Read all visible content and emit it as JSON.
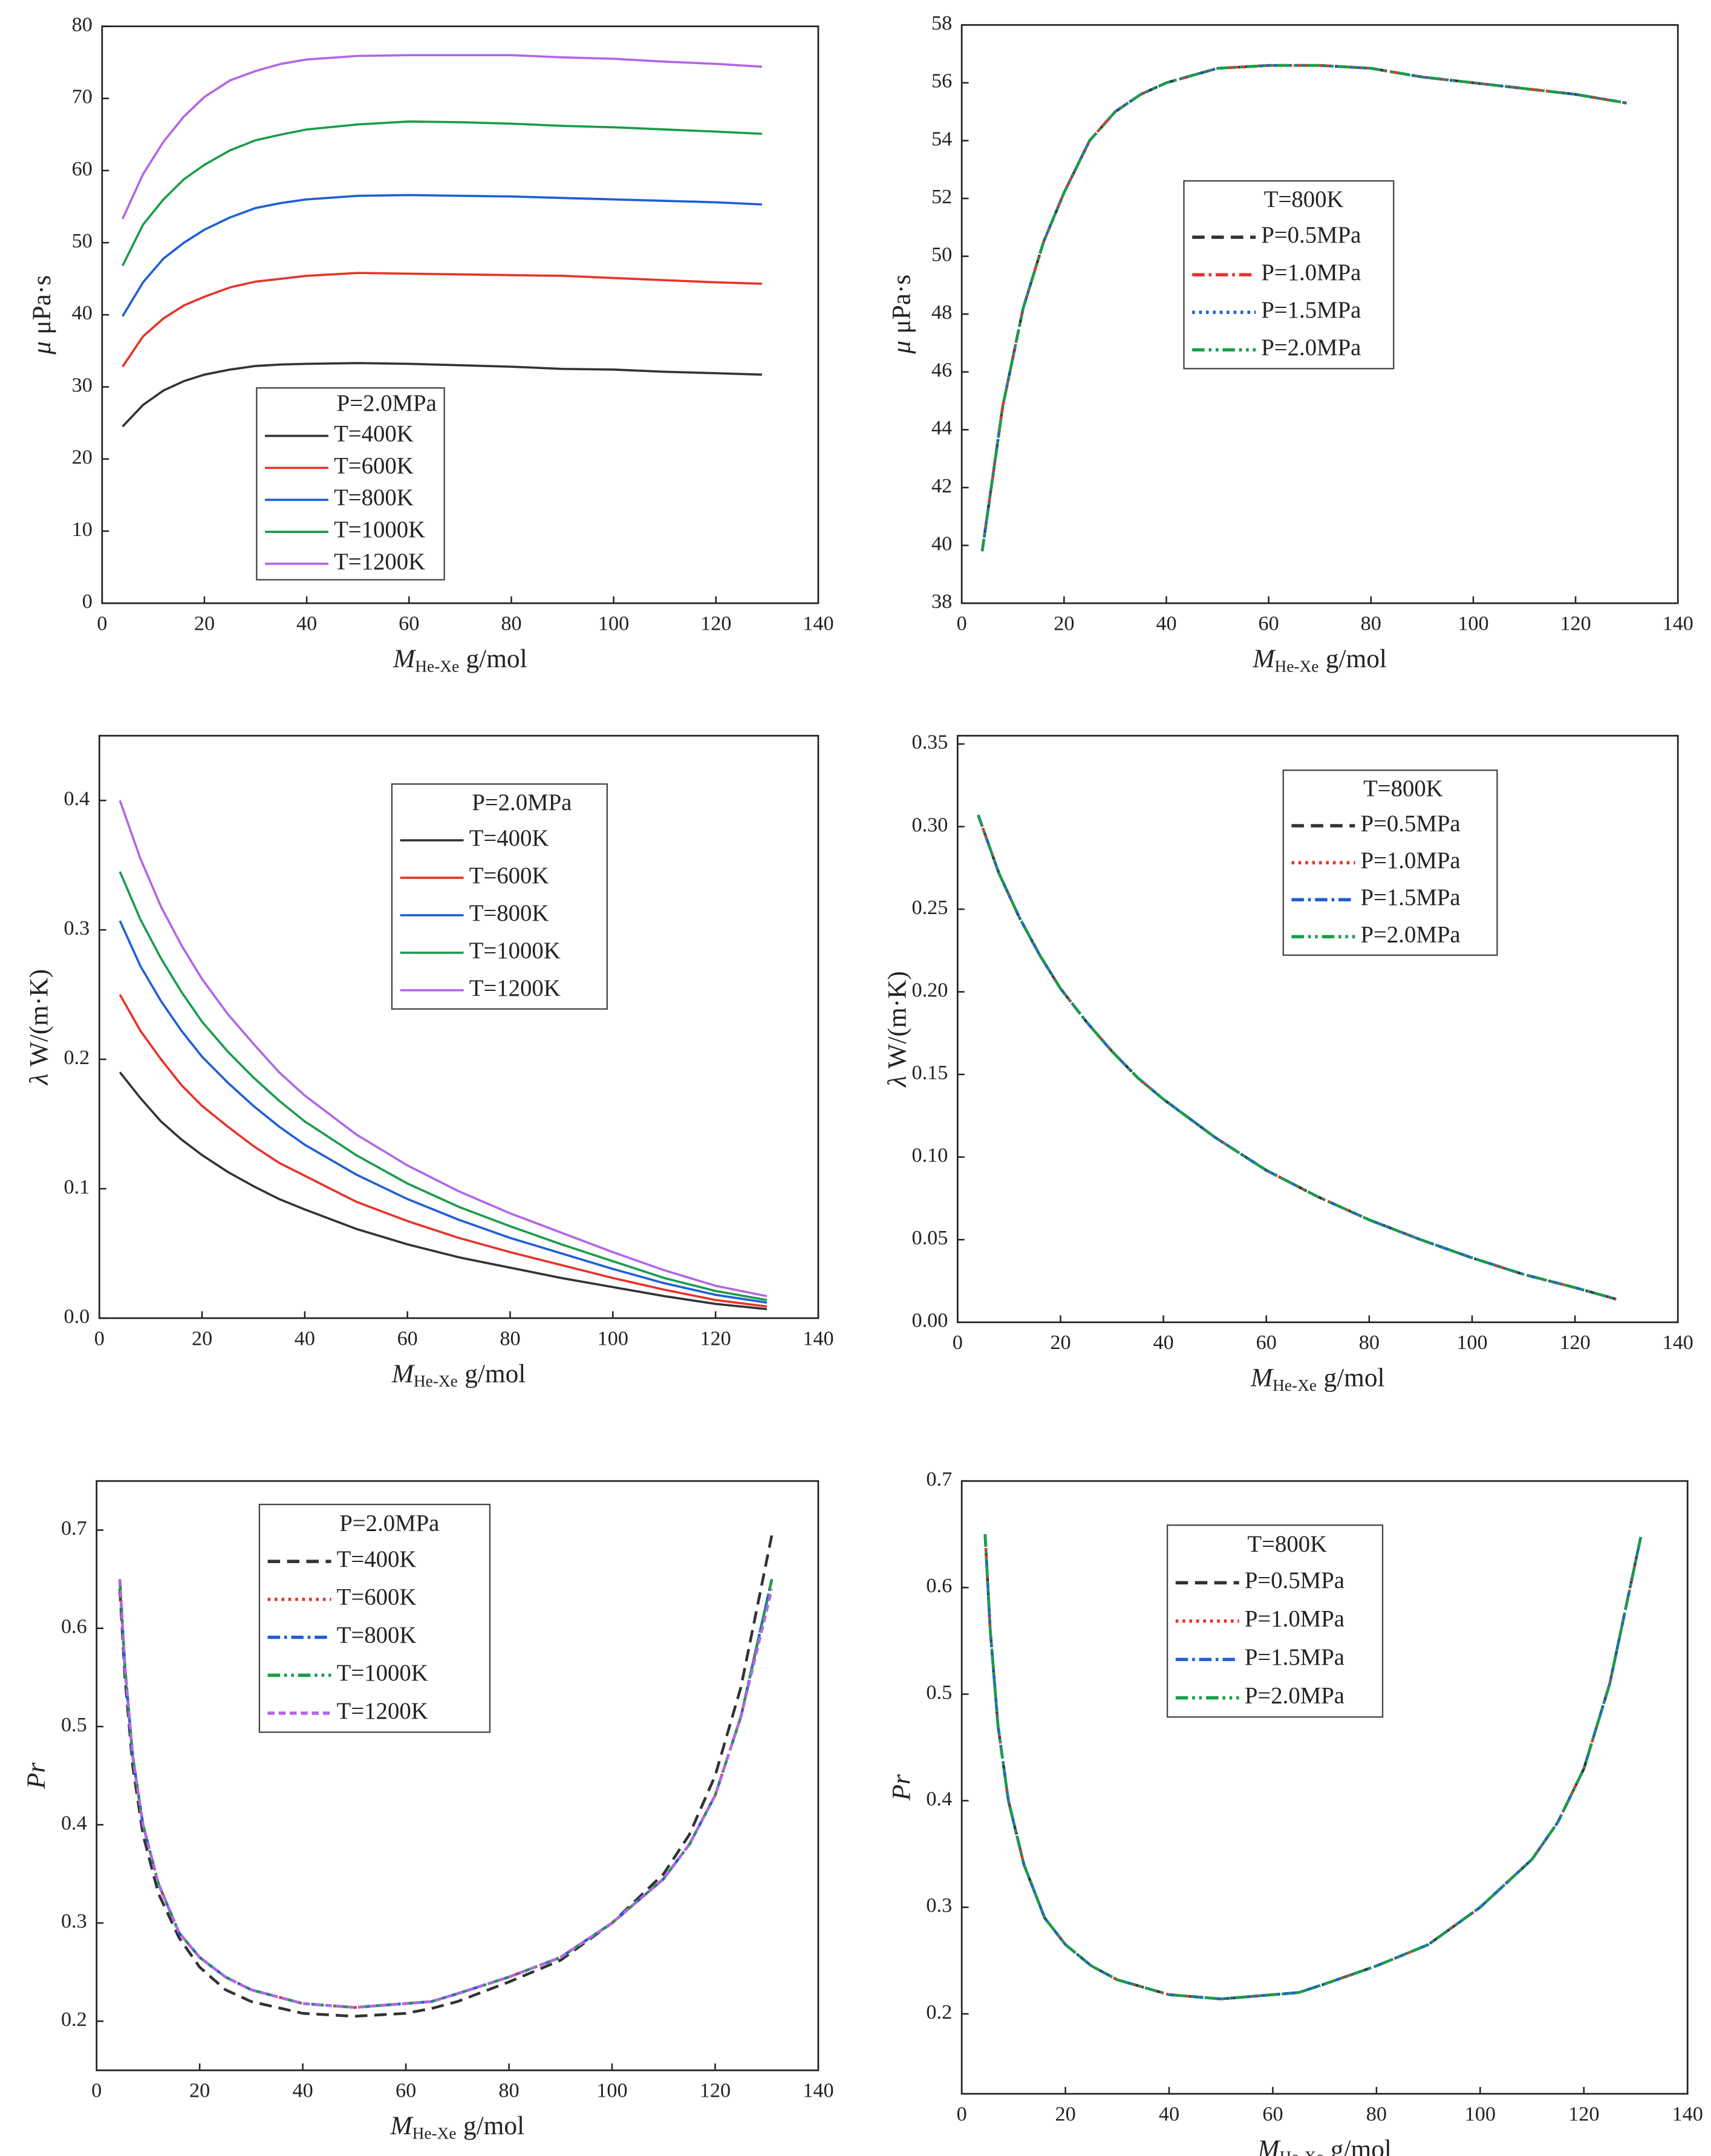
{
  "chart_data": [
    {
      "type": "line",
      "x": [
        4,
        8,
        12,
        16,
        20,
        25,
        30,
        35,
        40,
        50,
        60,
        70,
        80,
        90,
        100,
        110,
        120,
        129
      ],
      "xlim": [
        0,
        140
      ],
      "xticks": [
        0,
        20,
        40,
        60,
        80,
        100,
        120,
        140
      ],
      "ylim": [
        0,
        80
      ],
      "yticks": [
        0,
        10,
        20,
        30,
        40,
        50,
        60,
        70,
        80
      ],
      "x_label": {
        "symbol": "M",
        "sub": "He-Xe",
        "unit": "g/mol"
      },
      "y_label": {
        "symbol": "μ",
        "unit": "μPa·s"
      },
      "legend_title": "P=2.0MPa",
      "series": [
        {
          "name": "T=400K",
          "color": "#333333",
          "dash": "solid",
          "values": [
            24.5,
            27.5,
            29.5,
            30.8,
            31.7,
            32.4,
            32.9,
            33.1,
            33.2,
            33.3,
            33.2,
            33.0,
            32.8,
            32.5,
            32.4,
            32.1,
            31.9,
            31.7
          ]
        },
        {
          "name": "T=600K",
          "color": "#e8332a",
          "dash": "solid",
          "values": [
            32.8,
            37,
            39.5,
            41.3,
            42.5,
            43.8,
            44.6,
            45.0,
            45.4,
            45.8,
            45.7,
            45.6,
            45.5,
            45.4,
            45.1,
            44.8,
            44.5,
            44.3
          ]
        },
        {
          "name": "T=800K",
          "color": "#1f5fd6",
          "dash": "solid",
          "values": [
            39.8,
            44.5,
            47.8,
            50.0,
            51.8,
            53.5,
            54.8,
            55.5,
            56.0,
            56.5,
            56.6,
            56.5,
            56.4,
            56.2,
            56.0,
            55.8,
            55.6,
            55.3
          ]
        },
        {
          "name": "T=1000K",
          "color": "#1a9c4a",
          "dash": "solid",
          "values": [
            46.8,
            52.5,
            56.0,
            58.8,
            60.8,
            62.8,
            64.2,
            65.0,
            65.7,
            66.4,
            66.8,
            66.7,
            66.5,
            66.2,
            66.0,
            65.7,
            65.4,
            65.1
          ]
        },
        {
          "name": "T=1200K",
          "color": "#b266e6",
          "dash": "solid",
          "values": [
            53.3,
            59.5,
            64,
            67.5,
            70.2,
            72.5,
            73.8,
            74.8,
            75.4,
            75.9,
            76.0,
            76.0,
            76.0,
            75.7,
            75.5,
            75.1,
            74.8,
            74.4
          ]
        }
      ]
    },
    {
      "type": "line",
      "x": [
        4,
        8,
        12,
        16,
        20,
        25,
        30,
        35,
        40,
        50,
        60,
        70,
        80,
        90,
        100,
        110,
        120,
        130
      ],
      "xlim": [
        0,
        140
      ],
      "xticks": [
        0,
        20,
        40,
        60,
        80,
        100,
        120,
        140
      ],
      "ylim": [
        38,
        58
      ],
      "yticks": [
        38,
        40,
        42,
        44,
        46,
        48,
        50,
        52,
        54,
        56,
        58
      ],
      "x_label": {
        "symbol": "M",
        "sub": "He-Xe",
        "unit": "g/mol"
      },
      "y_label": {
        "symbol": "μ",
        "unit": "μPa·s"
      },
      "legend_title": "T=800K",
      "series": [
        {
          "name": "P=0.5MPa",
          "color": "#333333",
          "dash": "dash",
          "values": [
            39.8,
            44.8,
            48.2,
            50.5,
            52.2,
            54,
            55,
            55.6,
            56.0,
            56.5,
            56.6,
            56.6,
            56.5,
            56.2,
            56.0,
            55.8,
            55.6,
            55.3
          ]
        },
        {
          "name": "P=1.0MPa",
          "color": "#e8332a",
          "dash": "dashdot",
          "values": [
            39.8,
            44.8,
            48.2,
            50.5,
            52.2,
            54,
            55,
            55.6,
            56.0,
            56.5,
            56.6,
            56.6,
            56.5,
            56.2,
            56.0,
            55.8,
            55.6,
            55.3
          ]
        },
        {
          "name": "P=1.5MPa",
          "color": "#1f5fd6",
          "dash": "dot",
          "values": [
            39.8,
            44.8,
            48.2,
            50.5,
            52.2,
            54,
            55,
            55.6,
            56.0,
            56.5,
            56.6,
            56.6,
            56.5,
            56.2,
            56.0,
            55.8,
            55.6,
            55.3
          ]
        },
        {
          "name": "P=2.0MPa",
          "color": "#1a9c4a",
          "dash": "dashdotdot",
          "values": [
            39.8,
            44.8,
            48.2,
            50.5,
            52.2,
            54,
            55,
            55.6,
            56.0,
            56.5,
            56.6,
            56.6,
            56.5,
            56.2,
            56.0,
            55.8,
            55.6,
            55.3
          ]
        }
      ]
    },
    {
      "type": "line",
      "x": [
        4,
        8,
        12,
        16,
        20,
        25,
        30,
        35,
        40,
        50,
        60,
        70,
        80,
        90,
        100,
        110,
        120,
        130
      ],
      "xlim": [
        0,
        140
      ],
      "xticks": [
        0,
        20,
        40,
        60,
        80,
        100,
        120,
        140
      ],
      "ylim": [
        0,
        0.45
      ],
      "yticks": [
        {
          "value": 0,
          "label": "0.0"
        },
        0.1,
        0.2,
        0.3,
        0.4
      ],
      "x_label": {
        "symbol": "M",
        "sub": "He-Xe",
        "unit": "g/mol"
      },
      "y_label": {
        "symbol": "λ",
        "unit": "W/(m·K)"
      },
      "legend_title": "P=2.0MPa",
      "series": [
        {
          "name": "T=400K",
          "color": "#333333",
          "dash": "solid",
          "values": [
            0.19,
            0.17,
            0.152,
            0.138,
            0.126,
            0.113,
            0.102,
            0.092,
            0.084,
            0.069,
            0.057,
            0.047,
            0.039,
            0.031,
            0.024,
            0.017,
            0.011,
            0.007
          ]
        },
        {
          "name": "T=600K",
          "color": "#e8332a",
          "dash": "solid",
          "values": [
            0.25,
            0.222,
            0.2,
            0.18,
            0.164,
            0.148,
            0.133,
            0.12,
            0.11,
            0.09,
            0.075,
            0.062,
            0.051,
            0.041,
            0.031,
            0.022,
            0.014,
            0.009
          ]
        },
        {
          "name": "T=800K",
          "color": "#1f5fd6",
          "dash": "solid",
          "values": [
            0.307,
            0.272,
            0.245,
            0.222,
            0.202,
            0.182,
            0.164,
            0.148,
            0.134,
            0.111,
            0.092,
            0.076,
            0.062,
            0.05,
            0.038,
            0.027,
            0.018,
            0.012
          ]
        },
        {
          "name": "T=1000K",
          "color": "#1a9c4a",
          "dash": "solid",
          "values": [
            0.345,
            0.308,
            0.278,
            0.252,
            0.229,
            0.206,
            0.186,
            0.168,
            0.152,
            0.126,
            0.104,
            0.086,
            0.071,
            0.057,
            0.044,
            0.031,
            0.021,
            0.014
          ]
        },
        {
          "name": "T=1200K",
          "color": "#b266e6",
          "dash": "solid",
          "values": [
            0.4,
            0.355,
            0.318,
            0.288,
            0.262,
            0.235,
            0.212,
            0.19,
            0.172,
            0.142,
            0.118,
            0.098,
            0.081,
            0.066,
            0.051,
            0.037,
            0.025,
            0.017
          ]
        }
      ]
    },
    {
      "type": "line",
      "x": [
        4,
        8,
        12,
        16,
        20,
        25,
        30,
        35,
        40,
        50,
        60,
        70,
        80,
        90,
        100,
        110,
        120,
        128
      ],
      "xlim": [
        0,
        140
      ],
      "xticks": [
        0,
        20,
        40,
        60,
        80,
        100,
        120,
        140
      ],
      "ylim": [
        0,
        0.355
      ],
      "yticks": [
        {
          "value": 0,
          "label": "0.00"
        },
        0.05,
        {
          "value": 0.1,
          "label": "0.10"
        },
        0.15,
        {
          "value": 0.2,
          "label": "0.20"
        },
        0.25,
        {
          "value": 0.3,
          "label": "0.30"
        },
        0.35
      ],
      "x_label": {
        "symbol": "M",
        "sub": "He-Xe",
        "unit": "g/mol"
      },
      "y_label": {
        "symbol": "λ",
        "unit": "W/(m·K)"
      },
      "legend_title": "T=800K",
      "series": [
        {
          "name": "P=0.5MPa",
          "color": "#333333",
          "dash": "dash",
          "values": [
            0.307,
            0.272,
            0.245,
            0.222,
            0.202,
            0.182,
            0.164,
            0.148,
            0.135,
            0.112,
            0.092,
            0.076,
            0.062,
            0.05,
            0.039,
            0.029,
            0.021,
            0.014
          ]
        },
        {
          "name": "P=1.0MPa",
          "color": "#e8332a",
          "dash": "dot",
          "values": [
            0.307,
            0.272,
            0.245,
            0.222,
            0.202,
            0.182,
            0.164,
            0.148,
            0.135,
            0.112,
            0.092,
            0.076,
            0.062,
            0.05,
            0.039,
            0.029,
            0.021,
            0.014
          ]
        },
        {
          "name": "P=1.5MPa",
          "color": "#1f5fd6",
          "dash": "dashdot",
          "values": [
            0.307,
            0.272,
            0.245,
            0.222,
            0.202,
            0.182,
            0.164,
            0.148,
            0.135,
            0.112,
            0.092,
            0.076,
            0.062,
            0.05,
            0.039,
            0.029,
            0.021,
            0.014
          ]
        },
        {
          "name": "P=2.0MPa",
          "color": "#1a9c4a",
          "dash": "dashdotdot",
          "values": [
            0.307,
            0.272,
            0.245,
            0.222,
            0.202,
            0.182,
            0.164,
            0.148,
            0.135,
            0.112,
            0.092,
            0.076,
            0.062,
            0.05,
            0.039,
            0.029,
            0.021,
            0.014
          ]
        }
      ]
    },
    {
      "type": "line",
      "x": [
        4.5,
        5.5,
        7,
        9,
        12,
        16,
        20,
        25,
        30,
        40,
        50,
        60,
        65,
        70,
        80,
        90,
        100,
        110,
        115,
        120,
        125,
        131
      ],
      "xlim": [
        0,
        140
      ],
      "xticks": [
        0,
        20,
        40,
        60,
        80,
        100,
        120,
        140
      ],
      "ylim": [
        0.15,
        0.75
      ],
      "yticks": [
        0.2,
        0.3,
        0.4,
        0.5,
        0.6,
        0.7
      ],
      "x_label": {
        "symbol": "M",
        "sub": "He-Xe",
        "unit": "g/mol"
      },
      "y_label": {
        "symbol": "Pr"
      },
      "legend_title": "P=2.0MPa",
      "series": [
        {
          "name": "T=400K",
          "color": "#333333",
          "dash": "dash",
          "values": [
            0.64,
            0.55,
            0.46,
            0.39,
            0.33,
            0.285,
            0.255,
            0.232,
            0.22,
            0.208,
            0.205,
            0.208,
            0.213,
            0.22,
            0.24,
            0.262,
            0.3,
            0.35,
            0.39,
            0.45,
            0.54,
            0.695
          ]
        },
        {
          "name": "T=600K",
          "color": "#e8332a",
          "dash": "dot",
          "values": [
            0.65,
            0.56,
            0.47,
            0.4,
            0.34,
            0.29,
            0.265,
            0.245,
            0.232,
            0.218,
            0.214,
            0.218,
            0.22,
            0.228,
            0.245,
            0.265,
            0.3,
            0.345,
            0.38,
            0.43,
            0.51,
            0.65
          ]
        },
        {
          "name": "T=800K",
          "color": "#1f5fd6",
          "dash": "dashdot",
          "values": [
            0.65,
            0.56,
            0.47,
            0.4,
            0.34,
            0.29,
            0.265,
            0.245,
            0.232,
            0.218,
            0.214,
            0.218,
            0.22,
            0.228,
            0.245,
            0.265,
            0.3,
            0.345,
            0.38,
            0.43,
            0.51,
            0.65
          ]
        },
        {
          "name": "T=1000K",
          "color": "#1a9c4a",
          "dash": "dashdotdot",
          "values": [
            0.65,
            0.56,
            0.47,
            0.4,
            0.34,
            0.29,
            0.265,
            0.245,
            0.232,
            0.218,
            0.214,
            0.218,
            0.22,
            0.228,
            0.245,
            0.265,
            0.3,
            0.345,
            0.38,
            0.43,
            0.51,
            0.65
          ]
        },
        {
          "name": "T=1200K",
          "color": "#b266e6",
          "dash": "shortdash",
          "values": [
            0.65,
            0.56,
            0.47,
            0.4,
            0.34,
            0.29,
            0.265,
            0.245,
            0.232,
            0.218,
            0.214,
            0.218,
            0.22,
            0.228,
            0.245,
            0.265,
            0.3,
            0.345,
            0.38,
            0.43,
            0.51,
            0.64
          ]
        }
      ]
    },
    {
      "type": "line",
      "x": [
        4.5,
        5.5,
        7,
        9,
        12,
        16,
        20,
        25,
        30,
        40,
        50,
        60,
        65,
        70,
        80,
        90,
        100,
        110,
        115,
        120,
        125,
        131
      ],
      "xlim": [
        0,
        140
      ],
      "xticks": [
        0,
        20,
        40,
        60,
        80,
        100,
        120,
        140
      ],
      "ylim": [
        0.125,
        0.7
      ],
      "yticks": [
        0.2,
        0.3,
        0.4,
        0.5,
        0.6,
        0.7
      ],
      "x_label": {
        "symbol": "M",
        "sub": "He-Xe",
        "unit": "g/mol"
      },
      "y_label": {
        "symbol": "Pr"
      },
      "legend_title": "T=800K",
      "series": [
        {
          "name": "P=0.5MPa",
          "color": "#333333",
          "dash": "dash",
          "values": [
            0.65,
            0.56,
            0.47,
            0.4,
            0.34,
            0.29,
            0.265,
            0.245,
            0.232,
            0.218,
            0.214,
            0.218,
            0.22,
            0.228,
            0.245,
            0.265,
            0.3,
            0.345,
            0.38,
            0.43,
            0.51,
            0.648
          ]
        },
        {
          "name": "P=1.0MPa",
          "color": "#e8332a",
          "dash": "dot",
          "values": [
            0.65,
            0.56,
            0.47,
            0.4,
            0.34,
            0.29,
            0.265,
            0.245,
            0.232,
            0.218,
            0.214,
            0.218,
            0.22,
            0.228,
            0.245,
            0.265,
            0.3,
            0.345,
            0.38,
            0.43,
            0.51,
            0.648
          ]
        },
        {
          "name": "P=1.5MPa",
          "color": "#1f5fd6",
          "dash": "dashdot",
          "values": [
            0.65,
            0.56,
            0.47,
            0.4,
            0.34,
            0.29,
            0.265,
            0.245,
            0.232,
            0.218,
            0.214,
            0.218,
            0.22,
            0.228,
            0.245,
            0.265,
            0.3,
            0.345,
            0.38,
            0.43,
            0.51,
            0.648
          ]
        },
        {
          "name": "P=2.0MPa",
          "color": "#1a9c4a",
          "dash": "dashdotdot",
          "values": [
            0.65,
            0.56,
            0.47,
            0.4,
            0.34,
            0.29,
            0.265,
            0.245,
            0.232,
            0.218,
            0.214,
            0.218,
            0.22,
            0.228,
            0.245,
            0.265,
            0.3,
            0.345,
            0.38,
            0.43,
            0.51,
            0.648
          ]
        }
      ]
    }
  ]
}
